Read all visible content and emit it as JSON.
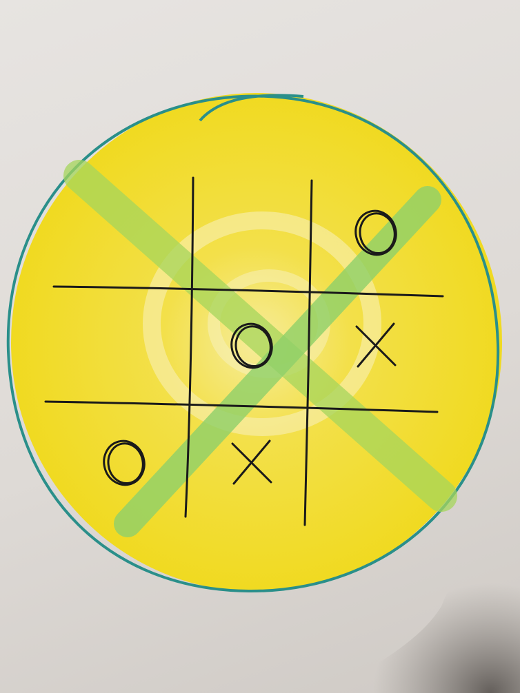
{
  "photo": {
    "subject": "tic-tac-toe",
    "paper_color": "#e3e0dd",
    "circle_fill_color": "#f2dc1e",
    "circle_outline_color": "#2a8f8a",
    "win_stroke_color": "#8fd16a",
    "ink_color": "#1a1a1a",
    "shadow_color": "#6f6a66"
  },
  "board": {
    "rows": 3,
    "cols": 3,
    "cells": [
      [
        "",
        "",
        "O"
      ],
      [
        "",
        "O",
        "X"
      ],
      [
        "O",
        "X",
        ""
      ]
    ],
    "winning_line": [
      [
        2,
        0
      ],
      [
        1,
        1
      ],
      [
        0,
        2
      ]
    ],
    "crossed_diagonal": [
      [
        0,
        0
      ],
      [
        1,
        1
      ],
      [
        2,
        2
      ]
    ]
  }
}
